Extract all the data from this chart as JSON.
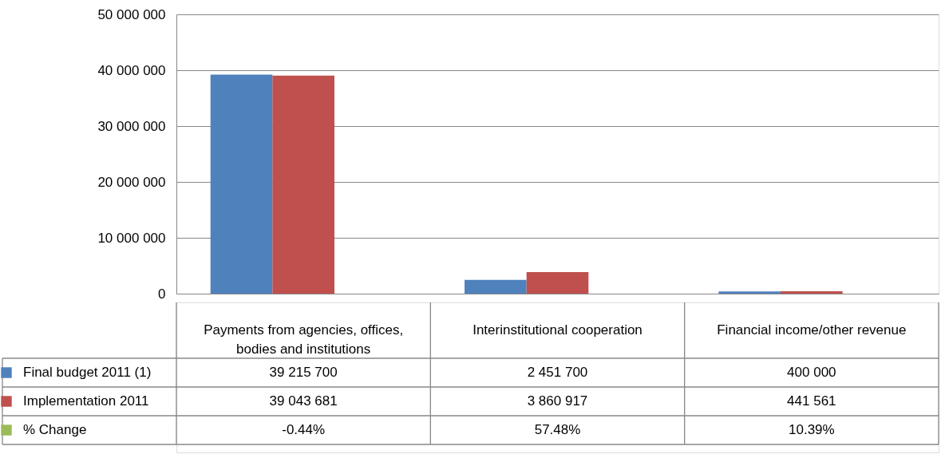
{
  "chart_data": {
    "type": "bar",
    "categories": [
      "Payments from agencies, offices, bodies and institutions",
      "Interinstitutional cooperation",
      "Financial income/other revenue"
    ],
    "series": [
      {
        "name": "Final budget 2011 (1)",
        "color": "#4f81bd",
        "values": [
          39215700,
          2451700,
          400000
        ],
        "value_labels": [
          "39 215 700",
          "2 451 700",
          "400 000"
        ]
      },
      {
        "name": "Implementation 2011",
        "color": "#c0504d",
        "values": [
          39043681,
          3860917,
          441561
        ],
        "value_labels": [
          "39 043 681",
          "3 860 917",
          "441 561"
        ]
      },
      {
        "name": "% Change",
        "color": "#9bbb59",
        "values": [
          null,
          57.48,
          10.39
        ],
        "value_labels": [
          "-0.44%",
          "57.48%",
          "10.39%"
        ]
      }
    ],
    "ylim": [
      0,
      50000000
    ],
    "yticks": [
      {
        "value": 0,
        "label": "0"
      },
      {
        "value": 10000000,
        "label": "10 000 000"
      },
      {
        "value": 20000000,
        "label": "20 000 000"
      },
      {
        "value": 30000000,
        "label": "30 000 000"
      },
      {
        "value": 40000000,
        "label": "40 000 000"
      },
      {
        "value": 50000000,
        "label": "50 000 000"
      }
    ],
    "grid": "y",
    "legend": "bottom"
  }
}
